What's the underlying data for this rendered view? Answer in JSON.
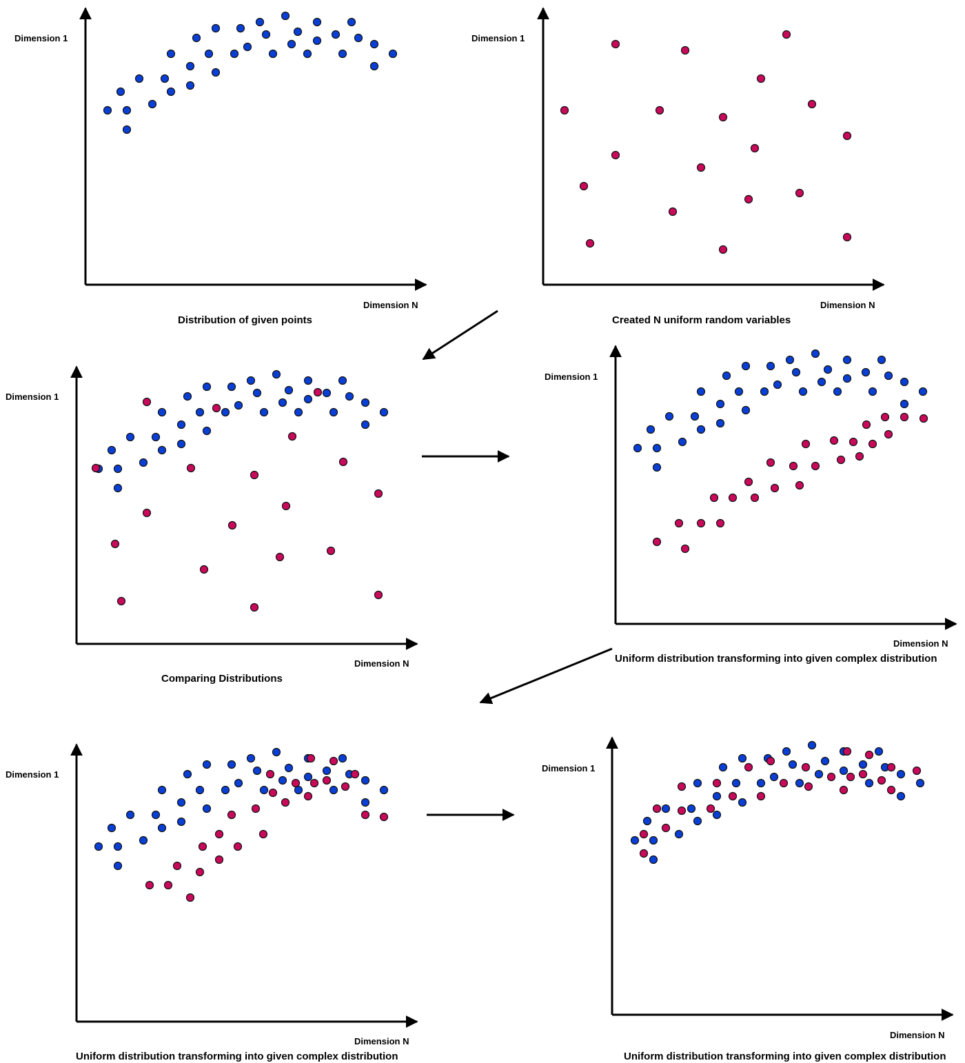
{
  "colors": {
    "given": "#0a3fd6",
    "uniform": "#c9095a",
    "axis": "#000000"
  },
  "panels": [
    {
      "ylabel": "Dimension 1",
      "xlabel": "Dimension N",
      "caption": "Distribution of given points"
    },
    {
      "ylabel": "Dimension 1",
      "xlabel": "Dimension N",
      "caption": "Created N uniform random variables"
    },
    {
      "ylabel": "Dimension 1",
      "xlabel": "Dimension N",
      "caption": "Comparing Distributions"
    },
    {
      "ylabel": "Dimension 1",
      "xlabel": "Dimension N",
      "caption": "Uniform  distribution transforming into given complex distribution"
    },
    {
      "ylabel": "Dimension 1",
      "xlabel": "Dimension N",
      "caption": "Uniform  distribution transforming into given complex distribution"
    },
    {
      "ylabel": "Dimension 1",
      "xlabel": "Dimension N",
      "caption": "Uniform  distribution transforming into given complex distribution"
    }
  ]
}
